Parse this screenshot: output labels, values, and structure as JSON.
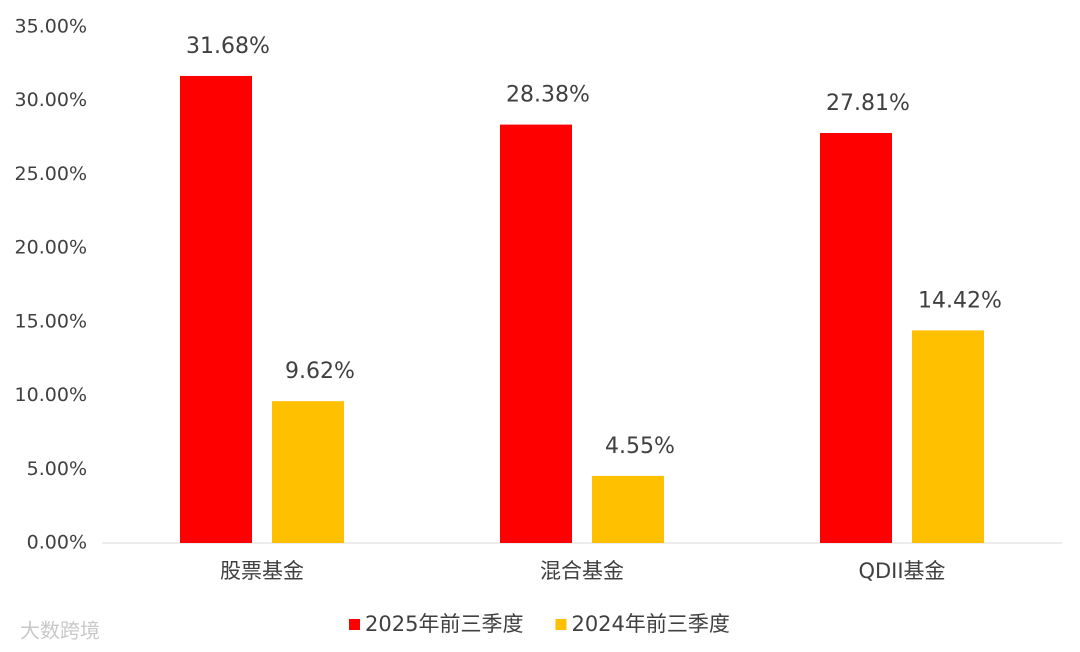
{
  "chart_data": {
    "type": "bar",
    "categories": [
      "股票基金",
      "混合基金",
      "QDII基金"
    ],
    "series": [
      {
        "name": "2025年前三季度",
        "color": "#ff0000",
        "values": [
          31.68,
          28.38,
          27.81
        ],
        "value_labels": [
          "31.68%",
          "28.38%",
          "27.81%"
        ]
      },
      {
        "name": "2024年前三季度",
        "color": "#ffc000",
        "values": [
          9.62,
          4.55,
          14.42
        ],
        "value_labels": [
          "9.62%",
          "4.55%",
          "14.42%"
        ]
      }
    ],
    "ylim": [
      0,
      35
    ],
    "yticks": [
      {
        "value": 0,
        "label": "0.00%"
      },
      {
        "value": 5,
        "label": "5.00%"
      },
      {
        "value": 10,
        "label": "10.00%"
      },
      {
        "value": 15,
        "label": "15.00%"
      },
      {
        "value": 20,
        "label": "20.00%"
      },
      {
        "value": 25,
        "label": "25.00%"
      },
      {
        "value": 30,
        "label": "30.00%"
      },
      {
        "value": 35,
        "label": "35.00%"
      }
    ],
    "grid": false,
    "legend": "bottom"
  },
  "watermark": "大数跨境"
}
